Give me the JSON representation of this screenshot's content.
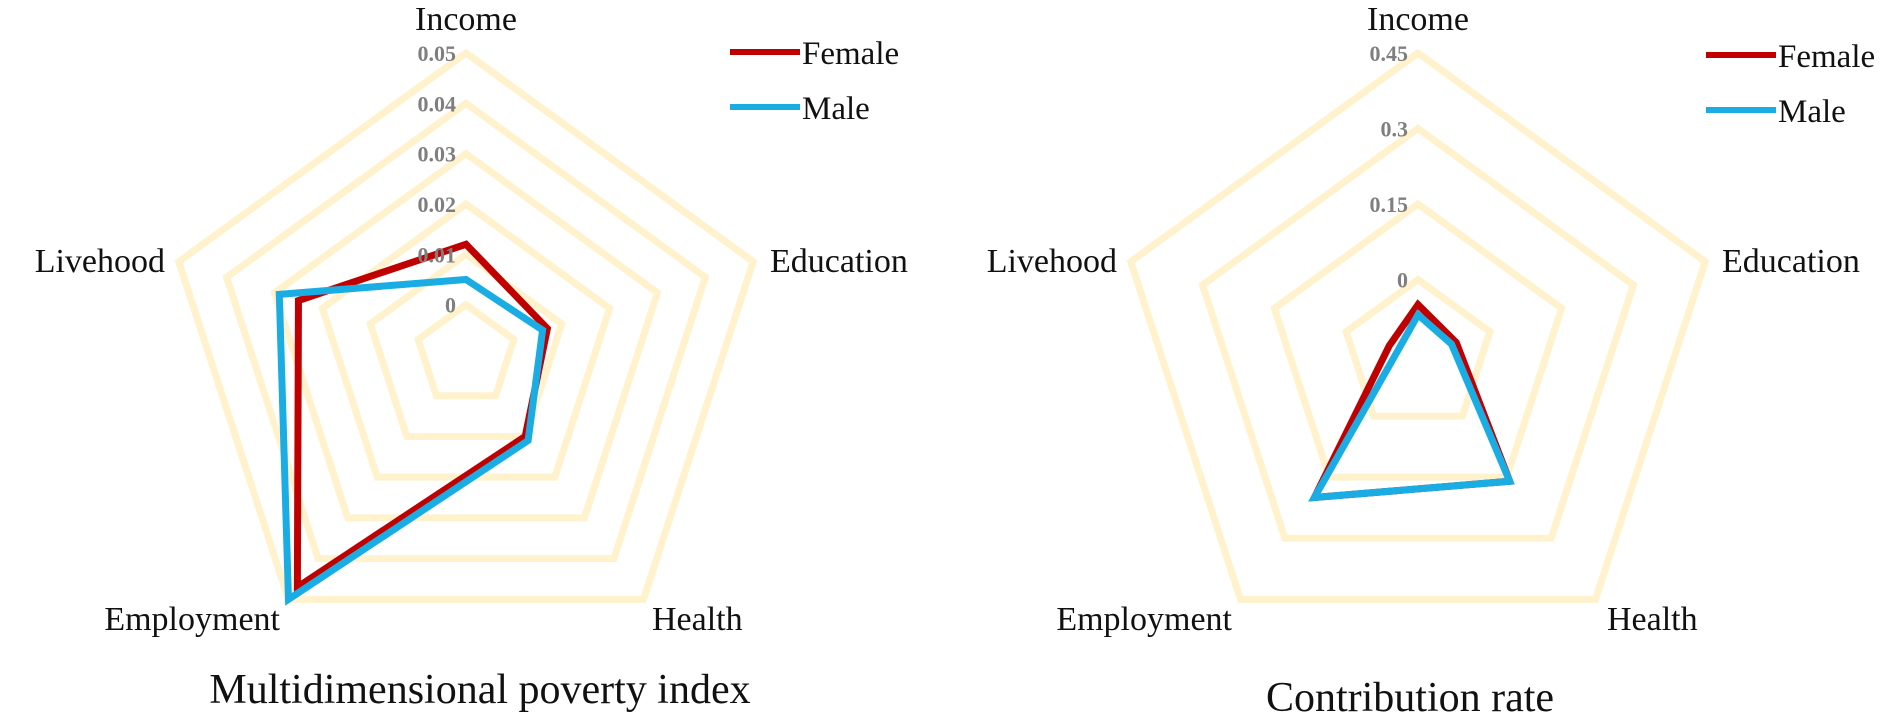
{
  "colors": {
    "female": "#c00000",
    "male": "#1aade4",
    "grid": "#fff2cc",
    "tick": "#7f7f7f"
  },
  "chart_data": [
    {
      "type": "radar",
      "title": "Multidimensional poverty index",
      "axes": [
        "Income",
        "Education",
        "Health",
        "Employment",
        "Livehood"
      ],
      "ticks": [
        "0",
        "0.01",
        "0.02",
        "0.03",
        "0.04",
        "0.05"
      ],
      "rmin": -0.01,
      "rmax": 0.05,
      "grid": true,
      "legend_position": "top-right",
      "series": [
        {
          "name": "Female",
          "color": "#c00000",
          "values": [
            0.012,
            0.007,
            0.01,
            0.047,
            0.025
          ]
        },
        {
          "name": "Male",
          "color": "#1aade4",
          "values": [
            0.005,
            0.006,
            0.011,
            0.05,
            0.029
          ]
        }
      ]
    },
    {
      "type": "radar",
      "title": "Contribution rate",
      "axes": [
        "Income",
        "Education",
        "Health",
        "Employment",
        "Livehood"
      ],
      "ticks": [
        "0",
        "0.15",
        "0.3",
        "0.45"
      ],
      "rmin": -0.15,
      "rmax": 0.45,
      "grid": true,
      "legend_position": "top-right",
      "series": [
        {
          "name": "Female",
          "color": "#c00000",
          "values": [
            -0.05,
            -0.07,
            0.16,
            0.2,
            -0.09
          ]
        },
        {
          "name": "Male",
          "color": "#1aade4",
          "values": [
            -0.07,
            -0.08,
            0.16,
            0.2,
            -0.11
          ]
        }
      ]
    }
  ]
}
